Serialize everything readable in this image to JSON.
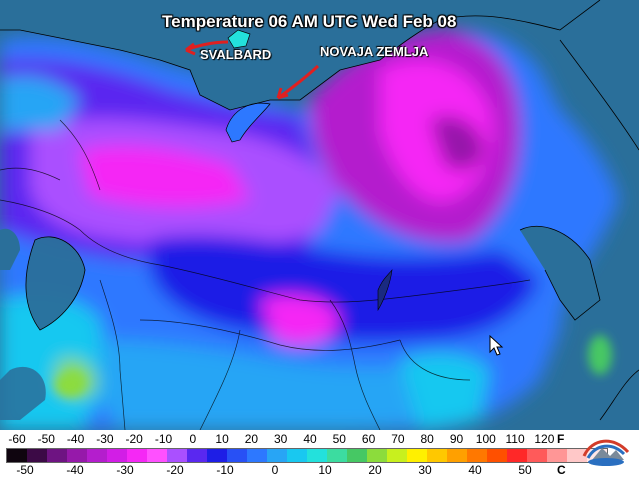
{
  "map": {
    "title": "Temperature 06 AM UTC Wed Feb 08",
    "labels": {
      "svalbard": "SVALBARD",
      "novaja": "NOVAJA ZEMLJA"
    }
  },
  "legend": {
    "unit_f": "F",
    "unit_c": "C",
    "ticks_f": [
      "-60",
      "-50",
      "-40",
      "-30",
      "-20",
      "-10",
      "0",
      "10",
      "20",
      "30",
      "40",
      "50",
      "60",
      "70",
      "80",
      "90",
      "100",
      "110",
      "120"
    ],
    "ticks_c": [
      "-50",
      "-40",
      "-30",
      "-20",
      "-10",
      "0",
      "10",
      "20",
      "30",
      "40",
      "50"
    ],
    "colors": [
      "#0f050f",
      "#3c0a46",
      "#6e1482",
      "#9619aa",
      "#b41ecd",
      "#d21ee6",
      "#f528f5",
      "#ff50ff",
      "#aa50ff",
      "#5a28f0",
      "#1e1ee6",
      "#2850f5",
      "#2d78ff",
      "#28a5f5",
      "#19c8f0",
      "#23e1dc",
      "#3cdca0",
      "#46c864",
      "#8cdc3c",
      "#c8f01e",
      "#fff000",
      "#ffc800",
      "#ffa000",
      "#ff7800",
      "#ff5000",
      "#ff2828",
      "#ff5a5a",
      "#ff9696",
      "#ffc8c8",
      "#ffe6e6"
    ]
  },
  "icons": {
    "logo": "logo-icon",
    "cursor": "mouse-cursor-icon"
  }
}
